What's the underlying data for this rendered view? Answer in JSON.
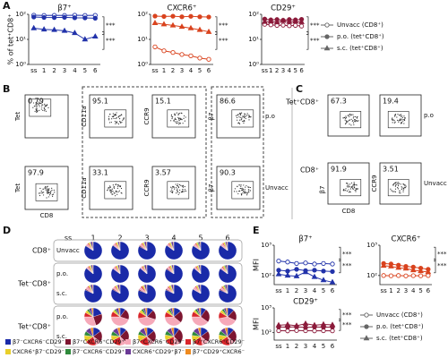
{
  "panels": [
    "A",
    "B",
    "C",
    "D",
    "E"
  ],
  "flow_B": {
    "y_label": "Tet",
    "x_label": "CD8",
    "markers": [
      "CD11a",
      "CCR9",
      "β7"
    ],
    "rows": [
      {
        "name": "p.o",
        "gates": [
          0.79,
          95.1,
          15.1,
          86.6
        ]
      },
      {
        "name": "Unvacc",
        "gates": [
          97.9,
          33.1,
          3.57,
          90.3
        ]
      }
    ]
  },
  "flow_C": {
    "row_labels": [
      "Tet⁺CD8⁺",
      "CD8⁺"
    ],
    "names": [
      "p.o",
      "Unvacc"
    ],
    "x_label": "CD8",
    "y_label": "β7",
    "y_label2": "CCR9",
    "values": [
      [
        67.3,
        19.4
      ],
      [
        91.9,
        3.51
      ]
    ]
  },
  "chart_data": [
    {
      "type": "line",
      "title": "β7⁺",
      "ylabel": "% of tet⁺CD8⁺",
      "log": true,
      "ylim": [
        1,
        100
      ],
      "yticks": [
        {
          "value": 1,
          "label": "10⁰"
        },
        {
          "value": 10,
          "label": "10¹"
        },
        {
          "value": 100,
          "label": "10²"
        }
      ],
      "categories": [
        "ss",
        "1",
        "2",
        "3",
        "4",
        "5",
        "6"
      ],
      "legend": "right",
      "legend_color": "#666666",
      "series": [
        {
          "name": "Unvacc (CD8⁺)",
          "color": "#2233aa",
          "marker": "circle-open",
          "values": [
            92,
            90,
            91,
            90,
            92,
            90,
            91
          ]
        },
        {
          "name": "p.o. (tet⁺CD8⁺)",
          "color": "#2233aa",
          "marker": "circle",
          "values": [
            78,
            75,
            74,
            76,
            73,
            72,
            70
          ]
        },
        {
          "name": "s.c. (tet⁺CD8⁺)",
          "color": "#2233aa",
          "marker": "triangle",
          "values": [
            28,
            25,
            24,
            22,
            18,
            10,
            13
          ]
        }
      ],
      "annotations": [
        "***",
        "***"
      ]
    },
    {
      "type": "line",
      "title": "CXCR6⁺",
      "log": true,
      "ylim": [
        1,
        100
      ],
      "yticks": [
        {
          "value": 1,
          "label": "10⁰"
        },
        {
          "value": 10,
          "label": "10¹"
        },
        {
          "value": 100,
          "label": "10²"
        }
      ],
      "categories": [
        "ss",
        "1",
        "2",
        "3",
        "4",
        "5",
        "6"
      ],
      "series": [
        {
          "name": "Unvacc (CD8⁺)",
          "color": "#d9431e",
          "marker": "circle-open",
          "values": [
            5,
            3.5,
            3,
            2.5,
            2.2,
            1.8,
            1.6
          ]
        },
        {
          "name": "p.o. (tet⁺CD8⁺)",
          "color": "#d9431e",
          "marker": "circle",
          "values": [
            85,
            82,
            84,
            80,
            83,
            80,
            78
          ]
        },
        {
          "name": "s.c. (tet⁺CD8⁺)",
          "color": "#d9431e",
          "marker": "triangle",
          "values": [
            45,
            40,
            36,
            32,
            28,
            24,
            20
          ]
        }
      ],
      "annotations": [
        "***",
        "***"
      ]
    },
    {
      "type": "line",
      "title": "CD29⁺",
      "log": true,
      "ylim": [
        1,
        100
      ],
      "yticks": [
        {
          "value": 1,
          "label": "10⁰"
        },
        {
          "value": 10,
          "label": "10¹"
        },
        {
          "value": 100,
          "label": "10²"
        }
      ],
      "categories": [
        "ss",
        "1",
        "2",
        "3",
        "4",
        "5",
        "6"
      ],
      "series": [
        {
          "name": "Unvacc (CD8⁺)",
          "color": "#8b1a3a",
          "marker": "circle-open",
          "values": [
            40,
            38,
            36,
            37,
            35,
            36,
            34
          ]
        },
        {
          "name": "p.o. (tet⁺CD8⁺)",
          "color": "#8b1a3a",
          "marker": "circle",
          "values": [
            65,
            60,
            62,
            58,
            62,
            60,
            63
          ]
        },
        {
          "name": "s.c. (tet⁺CD8⁺)",
          "color": "#8b1a3a",
          "marker": "triangle",
          "values": [
            50,
            52,
            48,
            55,
            50,
            52,
            49
          ]
        }
      ],
      "annotations": [
        "***",
        "***"
      ]
    },
    {
      "type": "line",
      "title": "β7⁺",
      "ylabel": "MFI",
      "log": true,
      "ylim": [
        50,
        1000
      ],
      "yticks": [
        {
          "value": 100,
          "label": "10²"
        },
        {
          "value": 1000,
          "label": "10³"
        }
      ],
      "categories": [
        "ss",
        "1",
        "2",
        "3",
        "4",
        "5",
        "6"
      ],
      "series": [
        {
          "name": "Unvacc (CD8⁺)",
          "color": "#2233aa",
          "marker": "circle-open",
          "values": [
            300,
            280,
            250,
            260,
            240,
            250,
            240
          ]
        },
        {
          "name": "p.o. (tet⁺CD8⁺)",
          "color": "#2233aa",
          "marker": "circle",
          "values": [
            150,
            140,
            160,
            145,
            150,
            140,
            135
          ]
        },
        {
          "name": "s.c. (tet⁺CD8⁺)",
          "color": "#2233aa",
          "marker": "triangle",
          "values": [
            110,
            100,
            95,
            130,
            90,
            70,
            60
          ]
        }
      ],
      "annotations": [
        "***",
        "***"
      ]
    },
    {
      "type": "line",
      "title": "CXCR6⁺",
      "log": true,
      "ylim": [
        50,
        1000
      ],
      "yticks": [
        {
          "value": 100,
          "label": "10²"
        },
        {
          "value": 1000,
          "label": "10³"
        }
      ],
      "categories": [
        "ss",
        "1",
        "2",
        "3",
        "4",
        "5",
        "6"
      ],
      "series": [
        {
          "name": "Unvacc (CD8⁺)",
          "color": "#d9431e",
          "marker": "circle-open",
          "values": [
            100,
            98,
            100,
            97,
            99,
            98,
            100
          ]
        },
        {
          "name": "p.o. (tet⁺CD8⁺)",
          "color": "#d9431e",
          "marker": "circle",
          "values": [
            250,
            240,
            220,
            200,
            190,
            175,
            160
          ]
        },
        {
          "name": "s.c. (tet⁺CD8⁺)",
          "color": "#d9431e",
          "marker": "triangle",
          "values": [
            210,
            200,
            180,
            170,
            150,
            140,
            130
          ]
        }
      ],
      "annotations": [
        "***",
        "***"
      ]
    },
    {
      "type": "line",
      "title": "CD29⁺",
      "ylabel": "MFI",
      "log": true,
      "ylim": [
        50,
        1000
      ],
      "yticks": [
        {
          "value": 100,
          "label": "10²"
        },
        {
          "value": 1000,
          "label": "10³"
        }
      ],
      "categories": [
        "ss",
        "1",
        "2",
        "3",
        "4",
        "5",
        "6"
      ],
      "legend": "right",
      "legend_color": "#666666",
      "series": [
        {
          "name": "Unvacc (CD8⁺)",
          "color": "#8b1a3a",
          "marker": "circle-open",
          "values": [
            120,
            118,
            122,
            120,
            118,
            120,
            119
          ]
        },
        {
          "name": "p.o. (tet⁺CD8⁺)",
          "color": "#8b1a3a",
          "marker": "circle",
          "values": [
            170,
            165,
            175,
            160,
            170,
            165,
            168
          ]
        },
        {
          "name": "s.c. (tet⁺CD8⁺)",
          "color": "#8b1a3a",
          "marker": "triangle",
          "values": [
            200,
            210,
            190,
            230,
            200,
            215,
            205
          ]
        }
      ],
      "annotations": [
        "***",
        "***"
      ]
    },
    {
      "type": "pie-grid",
      "column_title": "ss",
      "columns": [
        "1",
        "2",
        "3",
        "4",
        "5",
        "6"
      ],
      "subsets": [
        {
          "name": "β7⁻CXCR6⁻CD29⁻",
          "color": "#1a2aa8"
        },
        {
          "name": "β7⁺CXCR6⁺CD29⁺",
          "color": "#7d1530"
        },
        {
          "name": "β7⁺CXCR6⁻CD29⁻",
          "color": "#f6a9b9"
        },
        {
          "name": "β7⁺CXCR6⁺CD29⁻",
          "color": "#d9262b"
        },
        {
          "name": "CXCR6⁺β7⁻CD29⁻",
          "color": "#e9cf2a"
        },
        {
          "name": "β7⁻CXCR6⁻CD29⁺",
          "color": "#2f8a3c"
        },
        {
          "name": "CXCR6⁺CD29⁺β7⁻",
          "color": "#6b3a96"
        },
        {
          "name": "β7⁺CD29⁺CXCR6⁻",
          "color": "#ee8a1f"
        }
      ],
      "groups": [
        {
          "label": "CD8⁺",
          "rows": [
            {
              "name": "Unvacc",
              "values": [
                [
                  84,
                  1,
                  4,
                  2,
                  3,
                  1,
                  4,
                  1
                ],
                [
                  85,
                  1,
                  4,
                  2,
                  3,
                  1,
                  3,
                  1
                ],
                [
                  83,
                  2,
                  4,
                  2,
                  3,
                  1,
                  4,
                  1
                ],
                [
                  85,
                  1,
                  3,
                  2,
                  3,
                  1,
                  4,
                  1
                ],
                [
                  84,
                  1,
                  4,
                  2,
                  3,
                  2,
                  3,
                  1
                ],
                [
                  85,
                  1,
                  4,
                  2,
                  3,
                  1,
                  3,
                  1
                ]
              ]
            }
          ]
        },
        {
          "label": "Tet⁻CD8⁺",
          "rows": [
            {
              "name": "p.o.",
              "values": [
                [
                  86,
                  1,
                  3,
                  2,
                  3,
                  1,
                  3,
                  1
                ],
                [
                  85,
                  1,
                  4,
                  2,
                  3,
                  1,
                  3,
                  1
                ],
                [
                  86,
                  1,
                  3,
                  2,
                  2,
                  1,
                  4,
                  1
                ],
                [
                  84,
                  2,
                  4,
                  2,
                  3,
                  1,
                  3,
                  1
                ],
                [
                  86,
                  1,
                  3,
                  2,
                  3,
                  1,
                  3,
                  1
                ],
                [
                  85,
                  1,
                  3,
                  2,
                  3,
                  2,
                  3,
                  1
                ]
              ]
            },
            {
              "name": "s.c.",
              "values": [
                [
                  82,
                  2,
                  5,
                  2,
                  3,
                  1,
                  4,
                  1
                ],
                [
                  83,
                  2,
                  4,
                  2,
                  3,
                  1,
                  4,
                  1
                ],
                [
                  81,
                  2,
                  5,
                  3,
                  3,
                  1,
                  4,
                  1
                ],
                [
                  82,
                  2,
                  4,
                  2,
                  4,
                  1,
                  4,
                  1
                ],
                [
                  83,
                  1,
                  5,
                  2,
                  3,
                  1,
                  4,
                  1
                ],
                [
                  82,
                  2,
                  4,
                  2,
                  3,
                  2,
                  4,
                  1
                ]
              ]
            }
          ]
        },
        {
          "label": "Tet⁺CD8⁺",
          "rows": [
            {
              "name": "p.o.",
              "values": [
                [
                  20,
                  25,
                  30,
                  8,
                  5,
                  4,
                  5,
                  3
                ],
                [
                  10,
                  20,
                  45,
                  10,
                  4,
                  3,
                  5,
                  3
                ],
                [
                  12,
                  18,
                  42,
                  12,
                  5,
                  4,
                  4,
                  3
                ],
                [
                  14,
                  22,
                  38,
                  10,
                  5,
                  4,
                  4,
                  3
                ],
                [
                  10,
                  25,
                  40,
                  10,
                  4,
                  4,
                  4,
                  3
                ],
                [
                  12,
                  20,
                  40,
                  12,
                  5,
                  4,
                  4,
                  3
                ]
              ]
            },
            {
              "name": "s.c.",
              "values": [
                [
                  15,
                  20,
                  10,
                  20,
                  12,
                  8,
                  10,
                  5
                ],
                [
                  12,
                  25,
                  12,
                  18,
                  10,
                  8,
                  10,
                  5
                ],
                [
                  14,
                  22,
                  10,
                  20,
                  12,
                  7,
                  10,
                  5
                ],
                [
                  10,
                  28,
                  12,
                  18,
                  10,
                  8,
                  9,
                  5
                ],
                [
                  15,
                  20,
                  12,
                  18,
                  12,
                  8,
                  10,
                  5
                ],
                [
                  12,
                  24,
                  10,
                  20,
                  12,
                  8,
                  9,
                  5
                ]
              ]
            }
          ]
        }
      ]
    }
  ]
}
